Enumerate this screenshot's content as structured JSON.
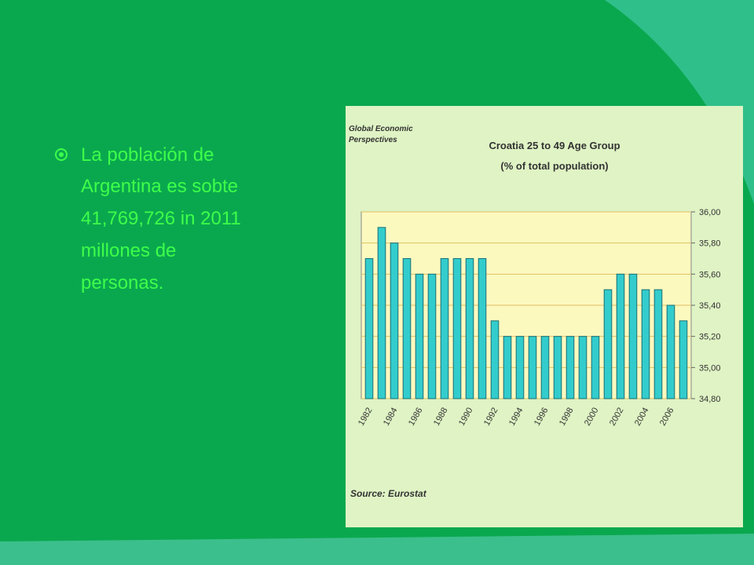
{
  "slide": {
    "bullet_lines": [
      "La población  de",
      "Argentina  es  sobte",
      "41,769,726  in 2011",
      "millones  de",
      "personas."
    ]
  },
  "chart_data": {
    "type": "bar",
    "brand": [
      "Global Economic",
      "Perspectives"
    ],
    "title": "Croatia 25 to 49 Age Group",
    "subtitle": "(% of total population)",
    "source": "Source: Eurostat",
    "categories": [
      "1982",
      null,
      "1984",
      null,
      "1986",
      null,
      "1988",
      null,
      "1990",
      null,
      "1992",
      null,
      "1994",
      null,
      "1996",
      null,
      "1998",
      null,
      "2000",
      null,
      "2002",
      null,
      "2004",
      null,
      "2006",
      null
    ],
    "values": [
      35.7,
      35.9,
      35.8,
      35.7,
      35.6,
      35.6,
      35.7,
      35.7,
      35.7,
      35.7,
      35.3,
      35.2,
      35.2,
      35.2,
      35.2,
      35.2,
      35.2,
      35.2,
      35.2,
      35.5,
      35.6,
      35.6,
      35.5,
      35.5,
      35.4,
      35.3
    ],
    "color": "#33cccc",
    "ylim": [
      34.8,
      36.0
    ],
    "yticks": [
      {
        "value": 34.8,
        "label": "34,80"
      },
      {
        "value": 35.0,
        "label": "35,00"
      },
      {
        "value": 35.2,
        "label": "35,20"
      },
      {
        "value": 35.4,
        "label": "35,40"
      },
      {
        "value": 35.6,
        "label": "35,60"
      },
      {
        "value": 35.8,
        "label": "35,80"
      },
      {
        "value": 36.0,
        "label": "36,00"
      }
    ],
    "grid": true
  }
}
